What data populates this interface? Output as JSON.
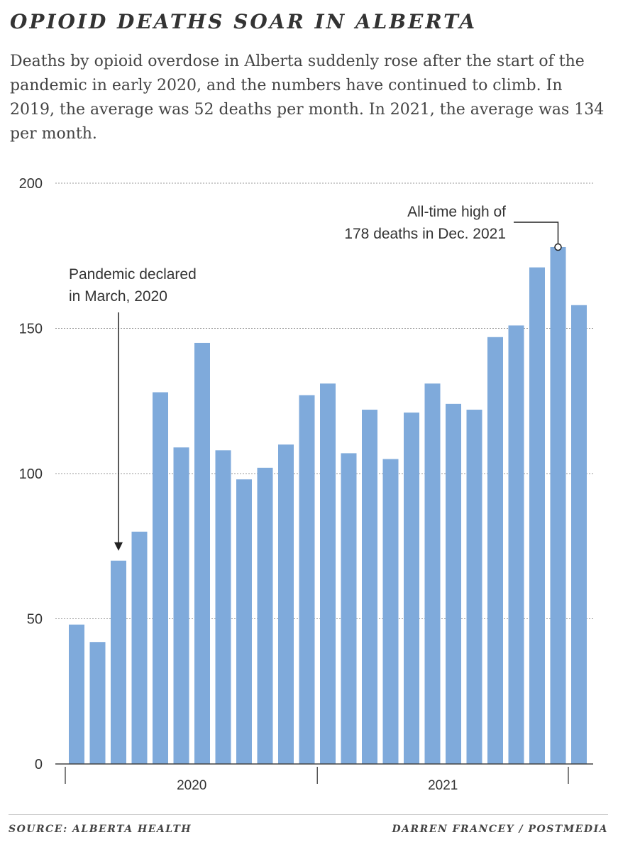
{
  "title": "OPIOID DEATHS SOAR IN ALBERTA",
  "subtitle": "Deaths by opioid overdose in Alberta suddenly rose after the start of the pandemic in early 2020, and the numbers have continued to climb. In 2019, the average was 52 deaths per month. In 2021, the average was 134 per month.",
  "source": "SOURCE: ALBERTA HEALTH",
  "credit": "DARREN FRANCEY / POSTMEDIA",
  "chart_data": {
    "type": "bar",
    "title": "",
    "xlabel": "",
    "ylabel": "",
    "ylim": [
      0,
      200
    ],
    "yticks": [
      0,
      50,
      100,
      150,
      200
    ],
    "grid": true,
    "bar_color": "#7faadb",
    "year_labels": [
      {
        "label": "2020",
        "start": 0,
        "end": 11
      },
      {
        "label": "2021",
        "start": 12,
        "end": 23
      }
    ],
    "values": [
      48,
      42,
      70,
      80,
      128,
      109,
      145,
      108,
      98,
      102,
      110,
      127,
      131,
      107,
      122,
      105,
      121,
      131,
      124,
      122,
      147,
      151,
      171,
      178,
      158
    ],
    "annotations": [
      {
        "lines": [
          "Pandemic declared",
          "in March, 2020"
        ],
        "bar_index": 2
      },
      {
        "lines": [
          "All-time high of",
          "178 deaths in Dec. 2021"
        ],
        "bar_index": 23
      }
    ]
  }
}
